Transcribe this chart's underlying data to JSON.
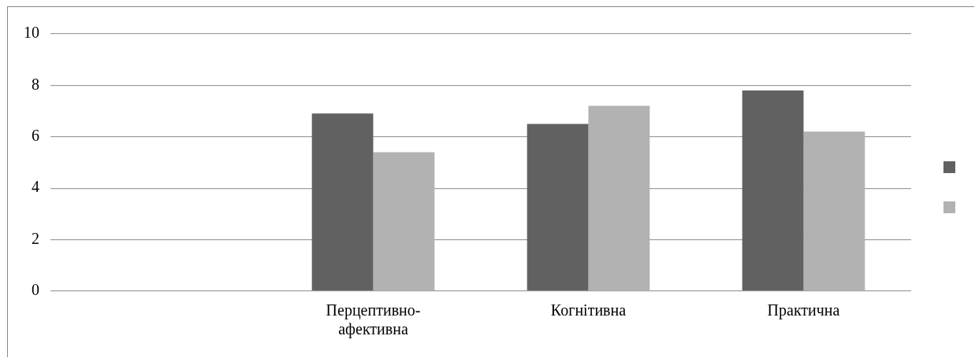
{
  "chart_data": {
    "type": "bar",
    "categories": [
      null,
      "Перцептивно-афективна",
      "Когнітивна",
      "Практична"
    ],
    "series": [
      {
        "color": "#616161",
        "values": [
          null,
          6.9,
          6.5,
          7.8
        ]
      },
      {
        "color": "#b2b2b2",
        "values": [
          null,
          5.4,
          7.2,
          6.2
        ]
      }
    ],
    "ylim": [
      0,
      10
    ],
    "yticks": [
      0,
      2,
      4,
      6,
      8,
      10
    ],
    "grid": "y"
  }
}
